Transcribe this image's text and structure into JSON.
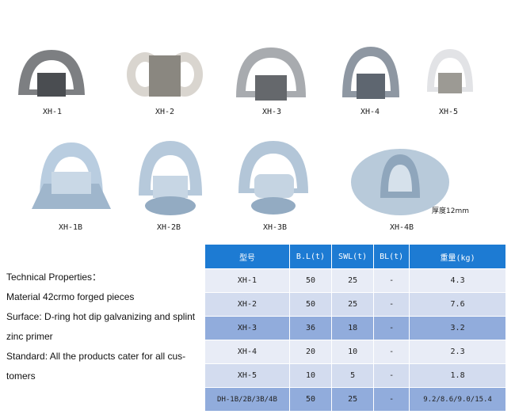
{
  "products_row1": [
    {
      "label": "XH-1"
    },
    {
      "label": "XH-2"
    },
    {
      "label": "XH-3"
    },
    {
      "label": "XH-4"
    },
    {
      "label": "XH-5"
    }
  ],
  "products_row2": [
    {
      "label": "XH-1B"
    },
    {
      "label": "XH-2B"
    },
    {
      "label": "XH-3B"
    },
    {
      "label": "XH-4B"
    }
  ],
  "thickness_note": "厚度12mm",
  "specs": [
    "Technical Properties：",
    "Material 42crmo forged pieces",
    "Surface: D-ring hot dip galvanizing and splint",
    "zinc primer",
    "Standard: All the products cater for all cus-",
    "tomers"
  ],
  "table": {
    "headers": [
      "型号",
      "B.L(t)",
      "SWL(t)",
      "BL(t)",
      "重量(kg)"
    ],
    "rows": [
      [
        "XH-1",
        "50",
        "25",
        "-",
        "4.3"
      ],
      [
        "XH-2",
        "50",
        "25",
        "-",
        "7.6"
      ],
      [
        "XH-3",
        "36",
        "18",
        "-",
        "3.2"
      ],
      [
        "XH-4",
        "20",
        "10",
        "-",
        "2.3"
      ],
      [
        "XH-5",
        "10",
        "5",
        "-",
        "1.8"
      ],
      [
        "DH-1B/2B/3B/4B",
        "50",
        "25",
        "-",
        "9.2/8.6/9.0/15.4"
      ]
    ]
  },
  "colors": {
    "header": "#1d7bd3",
    "row_light": "#e8ecf6",
    "row_mid": "#d3dcef",
    "row_dark": "#91acdc"
  }
}
